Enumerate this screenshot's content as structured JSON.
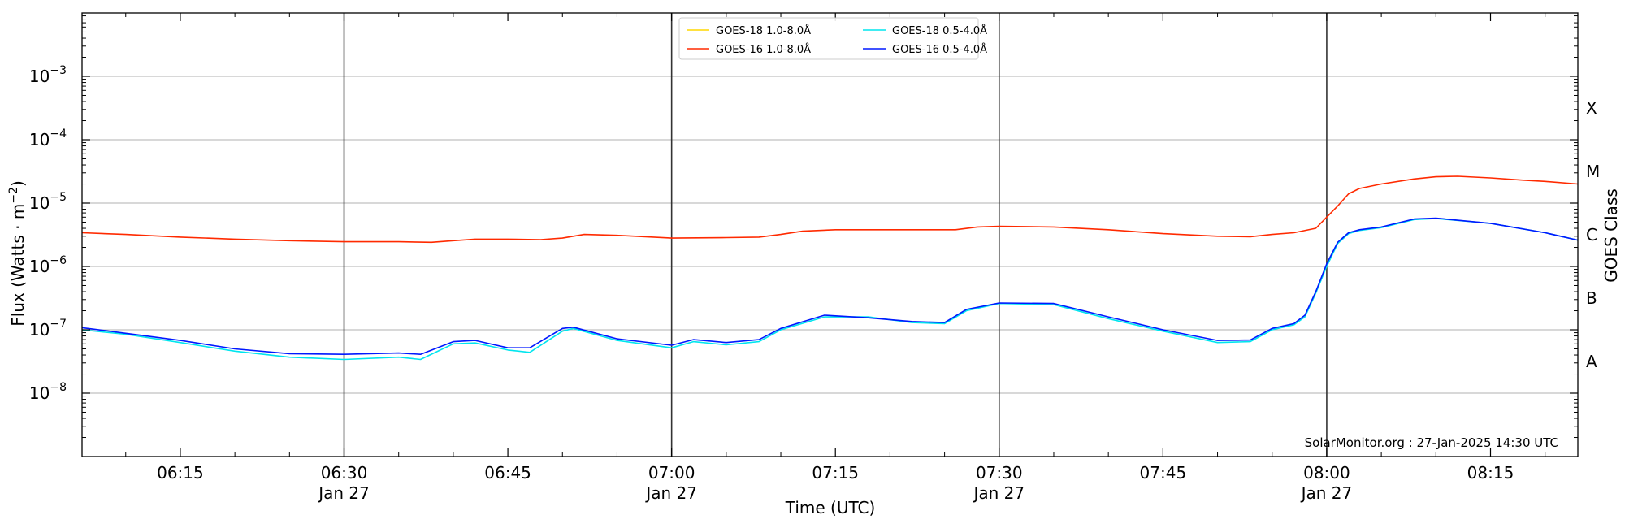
{
  "chart_data": {
    "type": "line",
    "ylabel": "Flux (Watts · m$^{-2}$)",
    "ylabel_display": "Flux (Watts · m",
    "ylabel_unit_exp": "−2",
    "xlabel": "Time (UTC)",
    "right_ylabel": "GOES Class",
    "y_scale": "log",
    "ylim": [
      1e-09,
      0.01
    ],
    "xlim": [
      "06:06",
      "08:23"
    ],
    "grid": "horizontal at decades",
    "x_ticks": [
      {
        "time": "06:15",
        "label": "06:15",
        "sublabel": ""
      },
      {
        "time": "06:30",
        "label": "06:30",
        "sublabel": "Jan 27"
      },
      {
        "time": "06:45",
        "label": "06:45",
        "sublabel": ""
      },
      {
        "time": "07:00",
        "label": "07:00",
        "sublabel": "Jan 27"
      },
      {
        "time": "07:15",
        "label": "07:15",
        "sublabel": ""
      },
      {
        "time": "07:30",
        "label": "07:30",
        "sublabel": "Jan 27"
      },
      {
        "time": "07:45",
        "label": "07:45",
        "sublabel": ""
      },
      {
        "time": "08:00",
        "label": "08:00",
        "sublabel": "Jan 27"
      },
      {
        "time": "08:15",
        "label": "08:15",
        "sublabel": ""
      }
    ],
    "vertical_lines": [
      "06:30",
      "07:00",
      "07:30",
      "08:00"
    ],
    "y_ticks": [
      {
        "exp": -8,
        "label": "10",
        "sup": "−8"
      },
      {
        "exp": -7,
        "label": "10",
        "sup": "−7"
      },
      {
        "exp": -6,
        "label": "10",
        "sup": "−6"
      },
      {
        "exp": -5,
        "label": "10",
        "sup": "−5"
      },
      {
        "exp": -4,
        "label": "10",
        "sup": "−4"
      },
      {
        "exp": -3,
        "label": "10",
        "sup": "−3"
      }
    ],
    "goes_classes": [
      {
        "label": "A",
        "flux": 3.16e-08
      },
      {
        "label": "B",
        "flux": 3.16e-07
      },
      {
        "label": "C",
        "flux": 3.16e-06
      },
      {
        "label": "M",
        "flux": 3.16e-05
      },
      {
        "label": "X",
        "flux": 0.000316
      }
    ],
    "legend_position": "upper center",
    "series": [
      {
        "name": "GOES-18 1.0-8.0Å",
        "color": "#FFD700",
        "x": [],
        "y": []
      },
      {
        "name": "GOES-16 1.0-8.0Å",
        "color": "#FF2A00",
        "x": [
          "06:06",
          "06:10",
          "06:15",
          "06:20",
          "06:25",
          "06:30",
          "06:35",
          "06:38",
          "06:40",
          "06:42",
          "06:45",
          "06:48",
          "06:50",
          "06:52",
          "06:55",
          "07:00",
          "07:05",
          "07:08",
          "07:10",
          "07:12",
          "07:15",
          "07:20",
          "07:23",
          "07:26",
          "07:28",
          "07:30",
          "07:35",
          "07:40",
          "07:45",
          "07:50",
          "07:53",
          "07:55",
          "07:57",
          "07:59",
          "08:00",
          "08:01",
          "08:02",
          "08:03",
          "08:05",
          "08:08",
          "08:10",
          "08:12",
          "08:15",
          "08:18",
          "08:20",
          "08:23"
        ],
        "y": [
          3.4e-06,
          3.2e-06,
          2.9e-06,
          2.7e-06,
          2.55e-06,
          2.45e-06,
          2.45e-06,
          2.4e-06,
          2.55e-06,
          2.7e-06,
          2.7e-06,
          2.65e-06,
          2.8e-06,
          3.2e-06,
          3.1e-06,
          2.8e-06,
          2.85e-06,
          2.9e-06,
          3.2e-06,
          3.6e-06,
          3.8e-06,
          3.8e-06,
          3.8e-06,
          3.8e-06,
          4.2e-06,
          4.3e-06,
          4.2e-06,
          3.8e-06,
          3.3e-06,
          3e-06,
          2.95e-06,
          3.2e-06,
          3.4e-06,
          4e-06,
          6e-06,
          9e-06,
          1.4e-05,
          1.7e-05,
          2e-05,
          2.4e-05,
          2.6e-05,
          2.65e-05,
          2.5e-05,
          2.3e-05,
          2.2e-05,
          2e-05
        ]
      },
      {
        "name": "GOES-18 0.5-4.0Å",
        "color": "#00E5EE",
        "x": [
          "06:06",
          "06:10",
          "06:15",
          "06:20",
          "06:25",
          "06:30",
          "06:35",
          "06:37",
          "06:40",
          "06:42",
          "06:45",
          "06:47",
          "06:50",
          "06:51",
          "06:55",
          "07:00",
          "07:02",
          "07:05",
          "07:08",
          "07:10",
          "07:14",
          "07:18",
          "07:22",
          "07:25",
          "07:27",
          "07:30",
          "07:35",
          "07:40",
          "07:45",
          "07:50",
          "07:53",
          "07:55",
          "07:57",
          "07:58",
          "07:59",
          "08:00",
          "08:01",
          "08:02",
          "08:03",
          "08:05",
          "08:08",
          "08:10",
          "08:15",
          "08:20",
          "08:23"
        ],
        "y": [
          1e-07,
          8.5e-08,
          6.3e-08,
          4.6e-08,
          3.7e-08,
          3.4e-08,
          3.7e-08,
          3.4e-08,
          6e-08,
          6.2e-08,
          4.8e-08,
          4.4e-08,
          9.5e-08,
          1.05e-07,
          6.8e-08,
          5.2e-08,
          6.5e-08,
          5.8e-08,
          6.5e-08,
          1e-07,
          1.6e-07,
          1.6e-07,
          1.3e-07,
          1.25e-07,
          2e-07,
          2.6e-07,
          2.5e-07,
          1.5e-07,
          9.5e-08,
          6.3e-08,
          6.5e-08,
          1e-07,
          1.2e-07,
          1.6e-07,
          3.8e-07,
          1e-06,
          2.3e-06,
          3.3e-06,
          3.7e-06,
          4.1e-06,
          5.5e-06,
          5.7e-06,
          4.8e-06,
          3.4e-06,
          2.6e-06
        ]
      },
      {
        "name": "GOES-16 0.5-4.0Å",
        "color": "#0018FF",
        "x": [
          "06:06",
          "06:10",
          "06:15",
          "06:20",
          "06:25",
          "06:30",
          "06:35",
          "06:37",
          "06:40",
          "06:42",
          "06:45",
          "06:47",
          "06:50",
          "06:51",
          "06:55",
          "07:00",
          "07:02",
          "07:05",
          "07:08",
          "07:10",
          "07:14",
          "07:18",
          "07:22",
          "07:25",
          "07:27",
          "07:30",
          "07:35",
          "07:40",
          "07:45",
          "07:50",
          "07:53",
          "07:55",
          "07:57",
          "07:58",
          "07:59",
          "08:00",
          "08:01",
          "08:02",
          "08:03",
          "08:05",
          "08:08",
          "08:10",
          "08:15",
          "08:20",
          "08:23"
        ],
        "y": [
          1.08e-07,
          8.8e-08,
          6.8e-08,
          5e-08,
          4.2e-08,
          4.1e-08,
          4.3e-08,
          4.1e-08,
          6.5e-08,
          6.8e-08,
          5.2e-08,
          5.2e-08,
          1.05e-07,
          1.1e-07,
          7.2e-08,
          5.7e-08,
          7e-08,
          6.3e-08,
          7e-08,
          1.05e-07,
          1.7e-07,
          1.55e-07,
          1.35e-07,
          1.3e-07,
          2.1e-07,
          2.65e-07,
          2.6e-07,
          1.6e-07,
          1e-07,
          6.8e-08,
          6.9e-08,
          1.05e-07,
          1.25e-07,
          1.7e-07,
          4e-07,
          1.1e-06,
          2.4e-06,
          3.4e-06,
          3.8e-06,
          4.2e-06,
          5.6e-06,
          5.8e-06,
          4.8e-06,
          3.4e-06,
          2.6e-06
        ]
      }
    ],
    "annotation": "SolarMonitor.org : 27-Jan-2025 14:30 UTC"
  }
}
